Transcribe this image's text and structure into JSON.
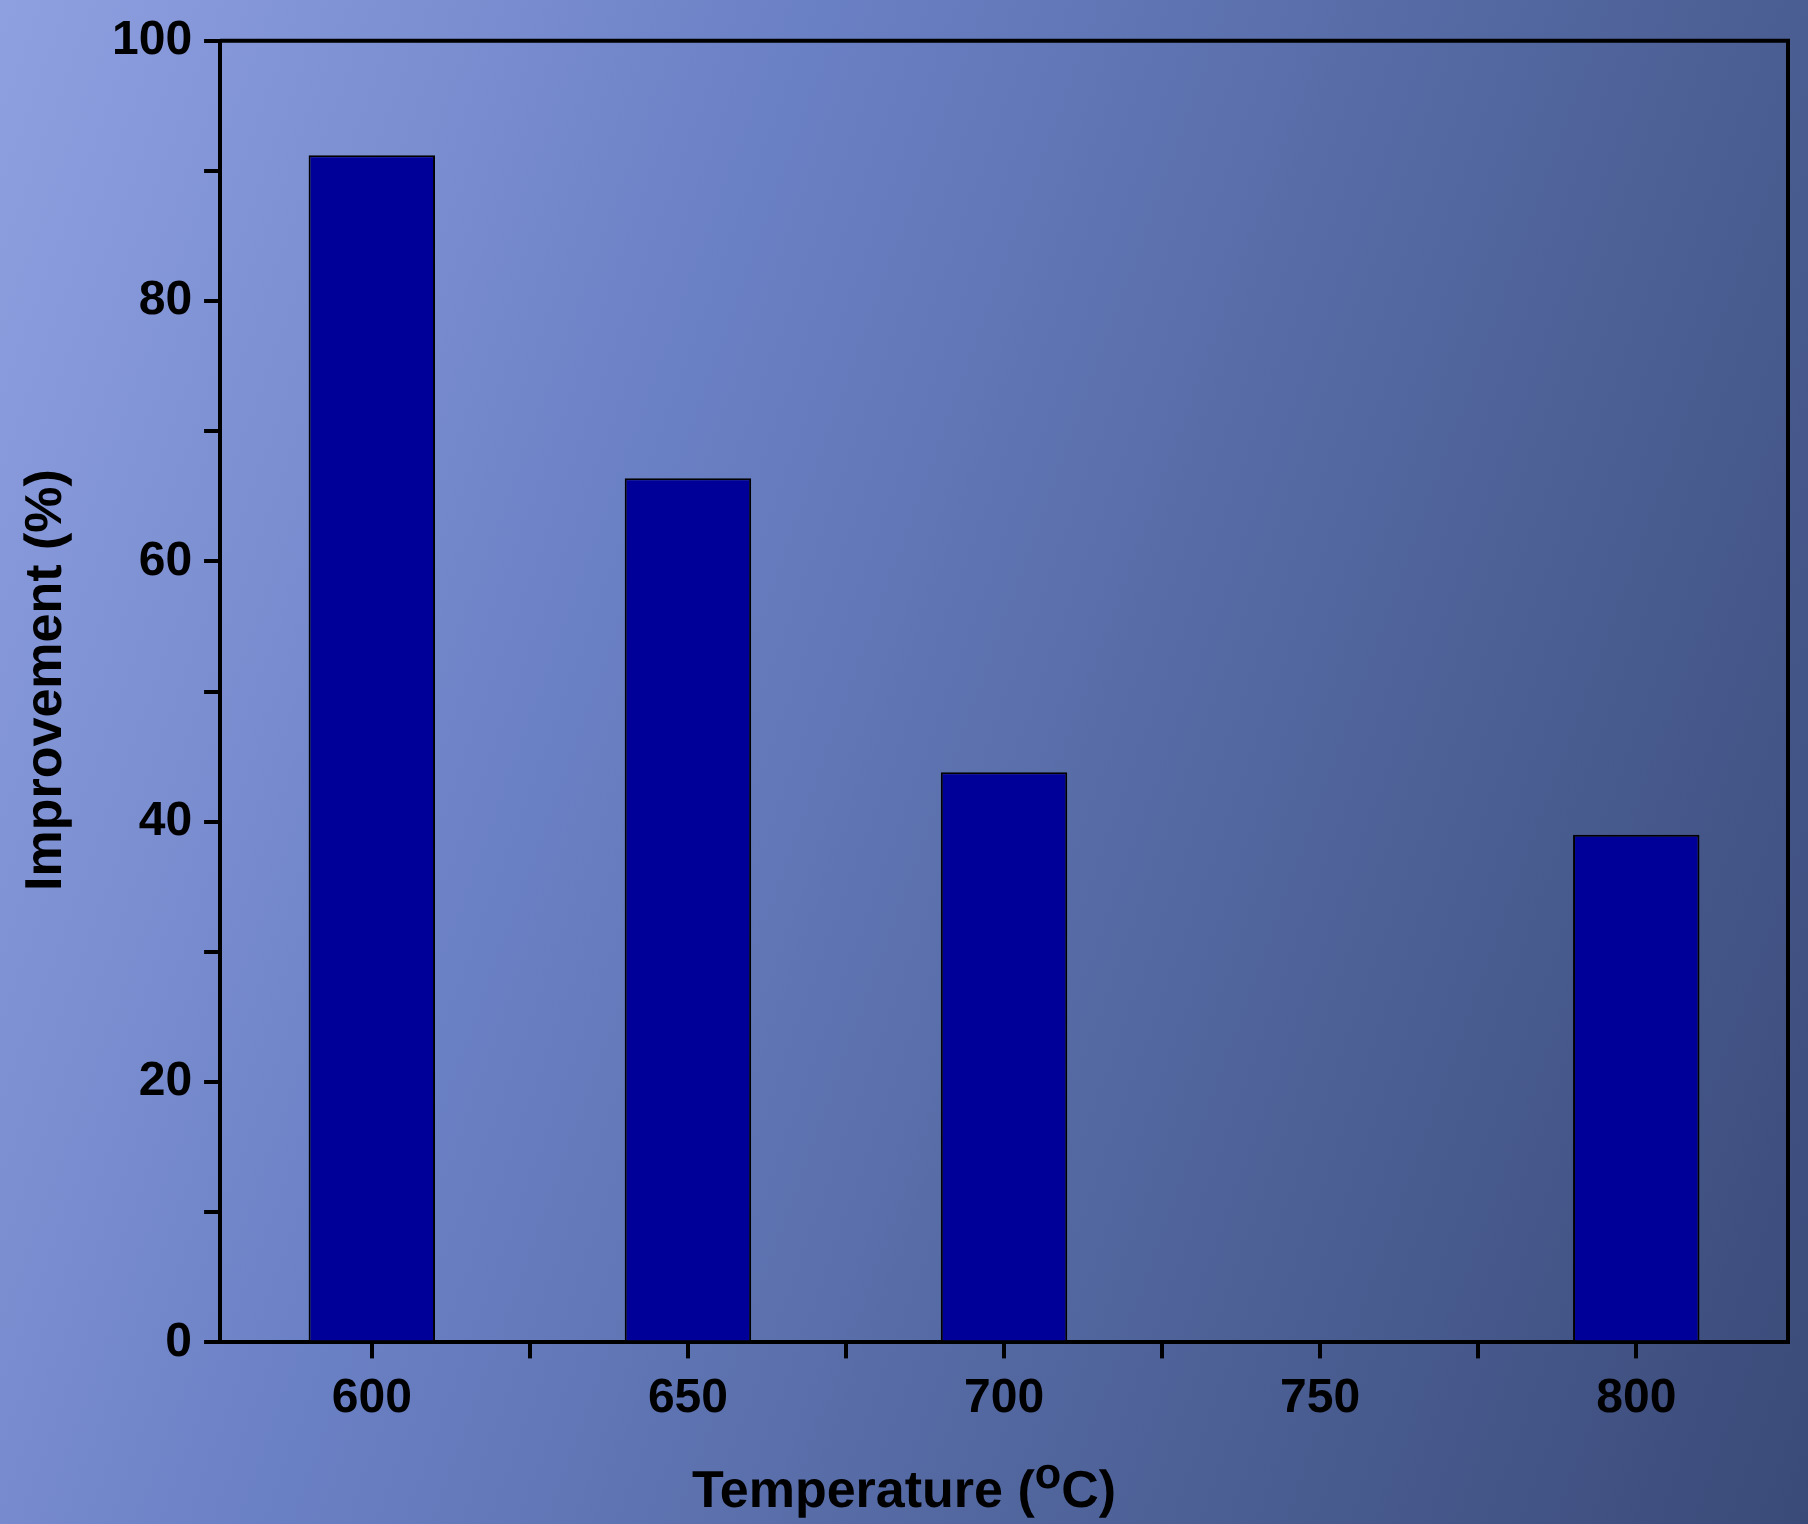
{
  "chart_data": {
    "type": "bar",
    "xlabel": "Temperature ($^{o}$C)",
    "ylabel": "Improvement (%)",
    "x": [
      600,
      650,
      700,
      800
    ],
    "values": [
      91.2,
      66.4,
      43.8,
      39.0
    ],
    "color": "#000099",
    "xlim": [
      576,
      824
    ],
    "xticks": [
      600,
      {
        "value": 625,
        "label": null
      },
      650,
      {
        "value": 675,
        "label": null
      },
      700,
      {
        "value": 725,
        "label": null
      },
      750,
      {
        "value": 775,
        "label": null
      },
      800
    ],
    "ylim": [
      0,
      100
    ],
    "yticks": [
      0,
      {
        "value": 10,
        "label": null
      },
      20,
      {
        "value": 30,
        "label": null
      },
      40,
      {
        "value": 50,
        "label": null
      },
      60,
      {
        "value": 70,
        "label": null
      },
      80,
      {
        "value": 90,
        "label": null
      },
      100
    ],
    "grid": false,
    "legend": false
  }
}
